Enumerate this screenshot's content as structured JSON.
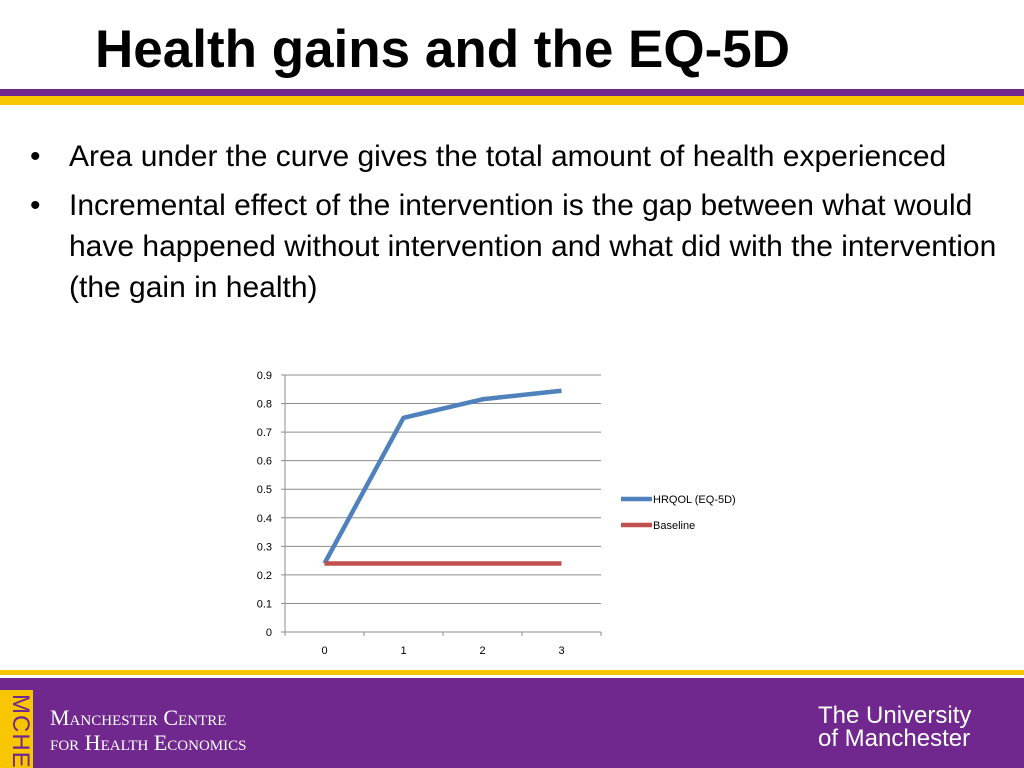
{
  "slide": {
    "title": "Health gains and the EQ-5D",
    "bullets": [
      {
        "mark": "•",
        "text": "Area under the curve gives the total amount of health experienced"
      },
      {
        "mark": "•",
        "text": "Incremental effect of the intervention is the gap between what would have happened without intervention and what did with the intervention (the gain in health)"
      }
    ]
  },
  "footer": {
    "badge": "MCHE",
    "centre_line1": "Manchester Centre",
    "centre_line2": "for Health Economics",
    "university_line1": "The University",
    "university_line2": "of Manchester"
  },
  "colors": {
    "purple": "#71288e",
    "yellow": "#f7c600",
    "series_hrqol": "#4f81bd",
    "series_baseline": "#c0504d"
  },
  "chart_data": {
    "type": "line",
    "x": [
      0,
      1,
      2,
      3
    ],
    "ylim": [
      0,
      0.9
    ],
    "yticks": [
      "0",
      "0.1",
      "0.2",
      "0.3",
      "0.4",
      "0.5",
      "0.6",
      "0.7",
      "0.8",
      "0.9"
    ],
    "xticks": [
      "0",
      "1",
      "2",
      "3"
    ],
    "grid": true,
    "legend_position": "right",
    "series": [
      {
        "name": "HRQOL (EQ-5D)",
        "values": [
          0.24,
          0.75,
          0.815,
          0.845
        ],
        "color": "#4f81bd"
      },
      {
        "name": "Baseline",
        "values": [
          0.24,
          0.24,
          0.24,
          0.24
        ],
        "color": "#c0504d"
      }
    ]
  }
}
